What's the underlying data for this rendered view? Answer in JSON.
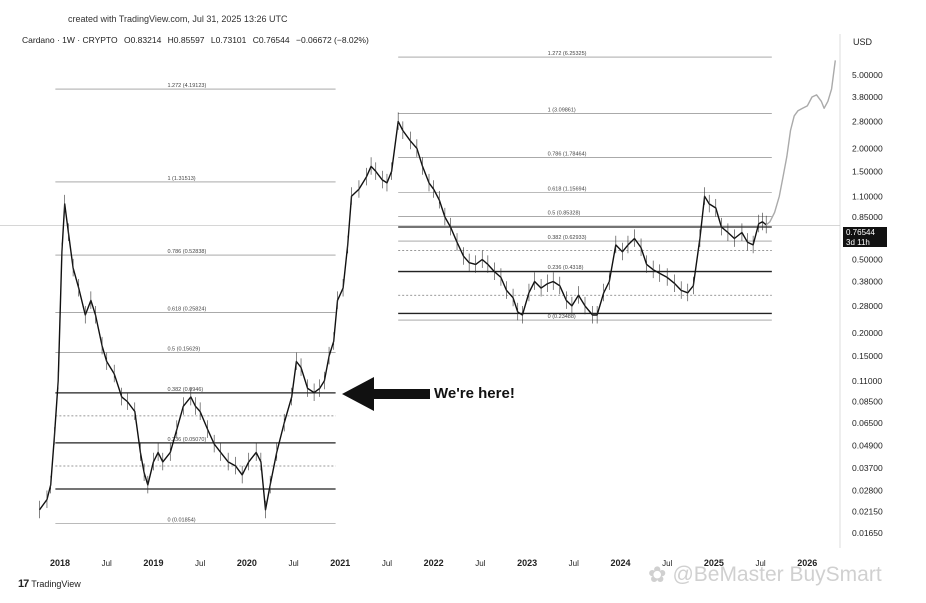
{
  "header": {
    "created": "created with TradingView.com, Jul 31, 2025 13:26 UTC",
    "symbol": "Cardano · 1W · CRYPTO",
    "open": "O0.83214",
    "high": "H0.85597",
    "low": "L0.73101",
    "close": "C0.76544",
    "change": "−0.06672 (−8.02%)",
    "currency": "USD"
  },
  "annotation": {
    "text": "We're here!"
  },
  "price_tag": {
    "price": "0.76544",
    "countdown": "3d 11h"
  },
  "brand": {
    "logo": "17",
    "name": "TradingView"
  },
  "watermark": {
    "icon": "flower-logo-icon",
    "text": "@BeMaster BuySmart"
  },
  "chart_data": {
    "type": "candlestick",
    "title": "",
    "xlabel": "",
    "ylabel": "",
    "yscale": "log",
    "grid": false,
    "x_ticks": [
      "2018",
      "Jul",
      "2019",
      "Jul",
      "2020",
      "Jul",
      "2021",
      "Jul",
      "2022",
      "Jul",
      "2023",
      "Jul",
      "2024",
      "Jul",
      "2025",
      "Jul",
      "2026"
    ],
    "y_ticks": [
      "5.00000",
      "3.80000",
      "2.80000",
      "2.00000",
      "1.50000",
      "1.10000",
      "0.85000",
      "0.50000",
      "0.38000",
      "0.28000",
      "0.20000",
      "0.15000",
      "0.11000",
      "0.08500",
      "0.06500",
      "0.04900",
      "0.03700",
      "0.02800",
      "0.02150",
      "0.01650"
    ],
    "ylim": [
      0.014,
      7.0
    ],
    "xlim": [
      2017.55,
      2026.35
    ],
    "price_series": [
      [
        2017.78,
        0.022
      ],
      [
        2017.86,
        0.025
      ],
      [
        2017.9,
        0.03
      ],
      [
        2017.94,
        0.055
      ],
      [
        2017.98,
        0.11
      ],
      [
        2018.02,
        0.55
      ],
      [
        2018.05,
        1.0
      ],
      [
        2018.09,
        0.7
      ],
      [
        2018.14,
        0.45
      ],
      [
        2018.2,
        0.35
      ],
      [
        2018.27,
        0.25
      ],
      [
        2018.33,
        0.3
      ],
      [
        2018.38,
        0.25
      ],
      [
        2018.45,
        0.17
      ],
      [
        2018.5,
        0.14
      ],
      [
        2018.58,
        0.12
      ],
      [
        2018.66,
        0.09
      ],
      [
        2018.72,
        0.085
      ],
      [
        2018.8,
        0.075
      ],
      [
        2018.86,
        0.045
      ],
      [
        2018.9,
        0.035
      ],
      [
        2018.94,
        0.03
      ],
      [
        2019.0,
        0.04
      ],
      [
        2019.05,
        0.045
      ],
      [
        2019.1,
        0.04
      ],
      [
        2019.18,
        0.045
      ],
      [
        2019.25,
        0.06
      ],
      [
        2019.32,
        0.08
      ],
      [
        2019.4,
        0.09
      ],
      [
        2019.45,
        0.08
      ],
      [
        2019.5,
        0.075
      ],
      [
        2019.58,
        0.06
      ],
      [
        2019.65,
        0.05
      ],
      [
        2019.72,
        0.045
      ],
      [
        2019.8,
        0.04
      ],
      [
        2019.88,
        0.038
      ],
      [
        2019.95,
        0.034
      ],
      [
        2020.02,
        0.04
      ],
      [
        2020.1,
        0.045
      ],
      [
        2020.15,
        0.04
      ],
      [
        2020.2,
        0.022
      ],
      [
        2020.25,
        0.03
      ],
      [
        2020.32,
        0.045
      ],
      [
        2020.4,
        0.065
      ],
      [
        2020.48,
        0.09
      ],
      [
        2020.53,
        0.14
      ],
      [
        2020.58,
        0.13
      ],
      [
        2020.65,
        0.1
      ],
      [
        2020.72,
        0.095
      ],
      [
        2020.78,
        0.1
      ],
      [
        2020.83,
        0.11
      ],
      [
        2020.88,
        0.15
      ],
      [
        2020.93,
        0.18
      ],
      [
        2020.97,
        0.3
      ],
      [
        2021.03,
        0.35
      ],
      [
        2021.08,
        0.6
      ],
      [
        2021.12,
        1.1
      ],
      [
        2021.2,
        1.2
      ],
      [
        2021.28,
        1.4
      ],
      [
        2021.33,
        1.6
      ],
      [
        2021.38,
        1.5
      ],
      [
        2021.45,
        1.35
      ],
      [
        2021.5,
        1.3
      ],
      [
        2021.55,
        1.5
      ],
      [
        2021.62,
        2.8
      ],
      [
        2021.67,
        2.5
      ],
      [
        2021.75,
        2.2
      ],
      [
        2021.82,
        2.0
      ],
      [
        2021.88,
        1.6
      ],
      [
        2021.95,
        1.3
      ],
      [
        2022.0,
        1.2
      ],
      [
        2022.06,
        1.05
      ],
      [
        2022.12,
        0.85
      ],
      [
        2022.18,
        0.75
      ],
      [
        2022.25,
        0.62
      ],
      [
        2022.32,
        0.52
      ],
      [
        2022.38,
        0.48
      ],
      [
        2022.45,
        0.47
      ],
      [
        2022.52,
        0.5
      ],
      [
        2022.58,
        0.47
      ],
      [
        2022.65,
        0.43
      ],
      [
        2022.72,
        0.4
      ],
      [
        2022.78,
        0.34
      ],
      [
        2022.85,
        0.31
      ],
      [
        2022.9,
        0.26
      ],
      [
        2022.95,
        0.25
      ],
      [
        2023.02,
        0.33
      ],
      [
        2023.08,
        0.38
      ],
      [
        2023.15,
        0.35
      ],
      [
        2023.22,
        0.37
      ],
      [
        2023.28,
        0.38
      ],
      [
        2023.35,
        0.36
      ],
      [
        2023.42,
        0.3
      ],
      [
        2023.48,
        0.28
      ],
      [
        2023.55,
        0.32
      ],
      [
        2023.62,
        0.28
      ],
      [
        2023.7,
        0.25
      ],
      [
        2023.75,
        0.25
      ],
      [
        2023.82,
        0.33
      ],
      [
        2023.88,
        0.38
      ],
      [
        2023.95,
        0.6
      ],
      [
        2024.02,
        0.55
      ],
      [
        2024.08,
        0.6
      ],
      [
        2024.15,
        0.65
      ],
      [
        2024.22,
        0.58
      ],
      [
        2024.28,
        0.47
      ],
      [
        2024.35,
        0.44
      ],
      [
        2024.42,
        0.42
      ],
      [
        2024.5,
        0.4
      ],
      [
        2024.58,
        0.37
      ],
      [
        2024.65,
        0.34
      ],
      [
        2024.72,
        0.33
      ],
      [
        2024.78,
        0.36
      ],
      [
        2024.85,
        0.65
      ],
      [
        2024.9,
        1.1
      ],
      [
        2024.95,
        1.0
      ],
      [
        2025.02,
        0.95
      ],
      [
        2025.08,
        0.75
      ],
      [
        2025.15,
        0.7
      ],
      [
        2025.22,
        0.65
      ],
      [
        2025.3,
        0.7
      ],
      [
        2025.36,
        0.62
      ],
      [
        2025.42,
        0.6
      ],
      [
        2025.48,
        0.78
      ],
      [
        2025.52,
        0.8
      ],
      [
        2025.56,
        0.77
      ]
    ],
    "projection_series": [
      [
        2025.56,
        0.77
      ],
      [
        2025.6,
        0.8
      ],
      [
        2025.65,
        0.9
      ],
      [
        2025.7,
        1.1
      ],
      [
        2025.74,
        1.4
      ],
      [
        2025.78,
        1.8
      ],
      [
        2025.82,
        2.5
      ],
      [
        2025.86,
        3.0
      ],
      [
        2025.9,
        3.2
      ],
      [
        2025.95,
        3.3
      ],
      [
        2026.0,
        3.4
      ],
      [
        2026.05,
        3.8
      ],
      [
        2026.1,
        3.9
      ],
      [
        2026.15,
        3.6
      ],
      [
        2026.18,
        3.3
      ],
      [
        2026.22,
        3.6
      ],
      [
        2026.26,
        4.2
      ],
      [
        2026.3,
        6.0
      ]
    ],
    "fib_sets": [
      {
        "x_start": 2017.95,
        "x_end": 2020.95,
        "levels": [
          {
            "label": "1.272 (4.19123)",
            "value": 4.19123
          },
          {
            "label": "1 (1.31513)",
            "value": 1.31513
          },
          {
            "label": "0.786 (0.52838)",
            "value": 0.52838
          },
          {
            "label": "0.618 (0.25824)",
            "value": 0.25824
          },
          {
            "label": "0.5 (0.15629)",
            "value": 0.15629
          },
          {
            "label": "0.382 (0.0946)",
            "value": 0.0946
          },
          {
            "label": "0.236 (0.05070)",
            "value": 0.0507
          },
          {
            "label": "0 (0.01854)",
            "value": 0.01854
          }
        ],
        "solid_lines": [
          0.0946,
          0.0507,
          0.0285
        ],
        "dashed_lines": [
          0.071,
          0.038
        ]
      },
      {
        "x_start": 2021.62,
        "x_end": 2025.62,
        "levels": [
          {
            "label": "1.272 (6.25325)",
            "value": 6.25325
          },
          {
            "label": "1 (3.09861)",
            "value": 3.09861
          },
          {
            "label": "0.786 (1.78464)",
            "value": 1.78464
          },
          {
            "label": "0.618 (1.15694)",
            "value": 1.15694
          },
          {
            "label": "0.5 (0.85328)",
            "value": 0.85328
          },
          {
            "label": "0.382 (0.62933)",
            "value": 0.62933
          },
          {
            "label": "0.236 (0.4318)",
            "value": 0.4318
          },
          {
            "label": "0 (0.23488)",
            "value": 0.23488
          }
        ],
        "solid_lines": [
          0.75,
          0.43,
          0.255
        ],
        "dashed_lines": [
          0.56,
          0.32
        ]
      }
    ],
    "current_price": 0.76544
  }
}
